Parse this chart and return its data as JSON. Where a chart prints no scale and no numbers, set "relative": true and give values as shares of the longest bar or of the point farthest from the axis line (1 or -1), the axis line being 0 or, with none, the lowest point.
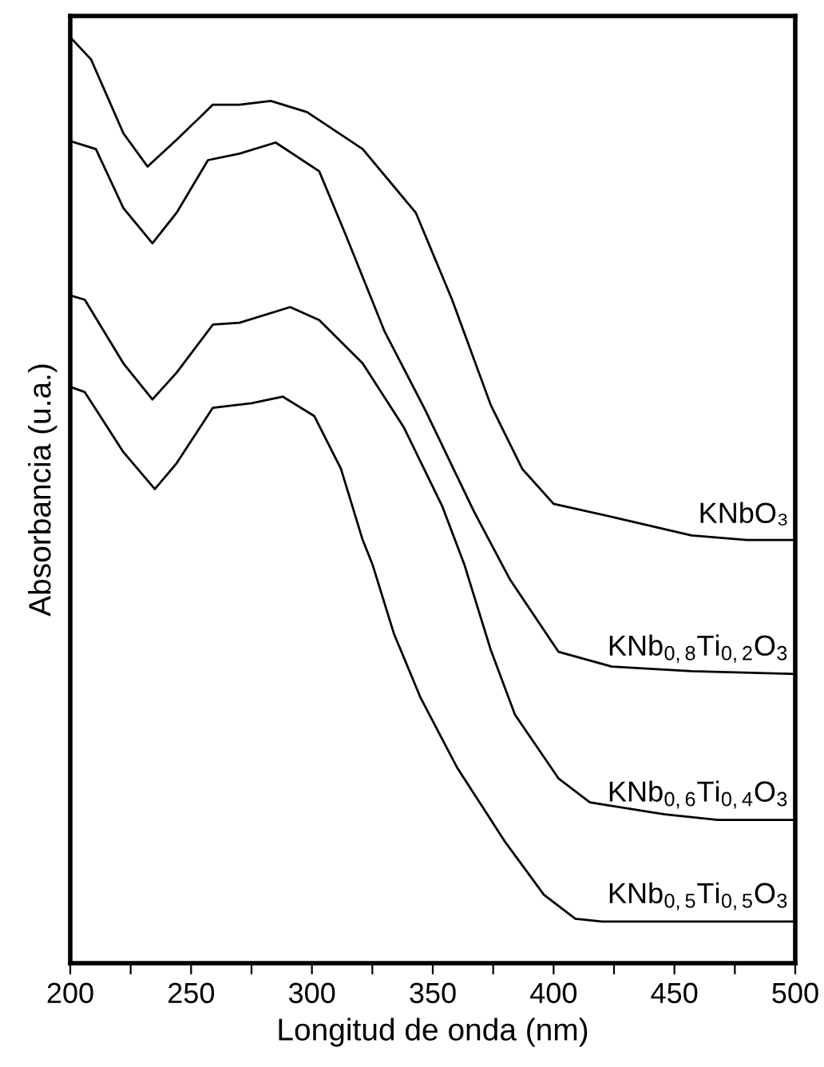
{
  "chart_data": {
    "type": "line",
    "relative": true,
    "xlabel": "Longitud de onda (nm)",
    "ylabel": "Absorbancia (u.a.)",
    "xlim": [
      200,
      500
    ],
    "xticks": [
      200,
      {
        "value": 225,
        "label": null
      },
      250,
      {
        "value": 275,
        "label": null
      },
      300,
      {
        "value": 325,
        "label": null
      },
      350,
      {
        "value": 375,
        "label": null
      },
      400,
      {
        "value": 425,
        "label": null
      },
      450,
      {
        "value": 475,
        "label": null
      },
      500
    ],
    "tick_labels": "x",
    "grid": false,
    "legend": false,
    "marker": "none",
    "line_style": "solid",
    "series": [
      {
        "name": "KNbO₃",
        "color": "#000000",
        "x": [
          200.7,
          208.6,
          222,
          232,
          244,
          259,
          270,
          283,
          298,
          321,
          343,
          358,
          374,
          387,
          400,
          424,
          457,
          480,
          500
        ],
        "values": [
          1.0,
          0.978,
          0.898,
          0.862,
          0.891,
          0.929,
          0.929,
          0.933,
          0.921,
          0.881,
          0.812,
          0.718,
          0.604,
          0.535,
          0.497,
          0.483,
          0.463,
          0.458,
          0.458
        ]
      },
      {
        "name": "KNb$_{0,8}$Ti$_{0,2}$O$_{3}$",
        "color": "#000000",
        "x": [
          200.7,
          210.6,
          222,
          234,
          244,
          257,
          270,
          285,
          303,
          314,
          330,
          347,
          367,
          382,
          402,
          424,
          457,
          500
        ],
        "values": [
          0.889,
          0.881,
          0.817,
          0.779,
          0.812,
          0.869,
          0.876,
          0.888,
          0.857,
          0.788,
          0.684,
          0.598,
          0.489,
          0.415,
          0.337,
          0.321,
          0.316,
          0.313
        ]
      },
      {
        "name": "KNb$_{0,6}$Ti$_{0,4}$O$_{3}$",
        "color": "#000000",
        "x": [
          200.7,
          206,
          222,
          234,
          244,
          259,
          270,
          291,
          303,
          321,
          338,
          354,
          363,
          374,
          384,
          402,
          415,
          446,
          468,
          500
        ],
        "values": [
          0.722,
          0.718,
          0.649,
          0.61,
          0.639,
          0.691,
          0.693,
          0.71,
          0.696,
          0.649,
          0.58,
          0.494,
          0.432,
          0.339,
          0.269,
          0.2,
          0.174,
          0.161,
          0.155,
          0.155
        ]
      },
      {
        "name": "KNb$_{0,5}$Ti$_{0,5}$O$_{3}$",
        "color": "#000000",
        "x": [
          200.7,
          206,
          222,
          235,
          244,
          259,
          275,
          288,
          301,
          312,
          321,
          325,
          334,
          345,
          360,
          380,
          396,
          409,
          420,
          500
        ],
        "values": [
          0.623,
          0.618,
          0.553,
          0.513,
          0.541,
          0.601,
          0.606,
          0.613,
          0.592,
          0.535,
          0.458,
          0.432,
          0.356,
          0.287,
          0.212,
          0.131,
          0.074,
          0.048,
          0.045,
          0.045
        ]
      }
    ]
  }
}
